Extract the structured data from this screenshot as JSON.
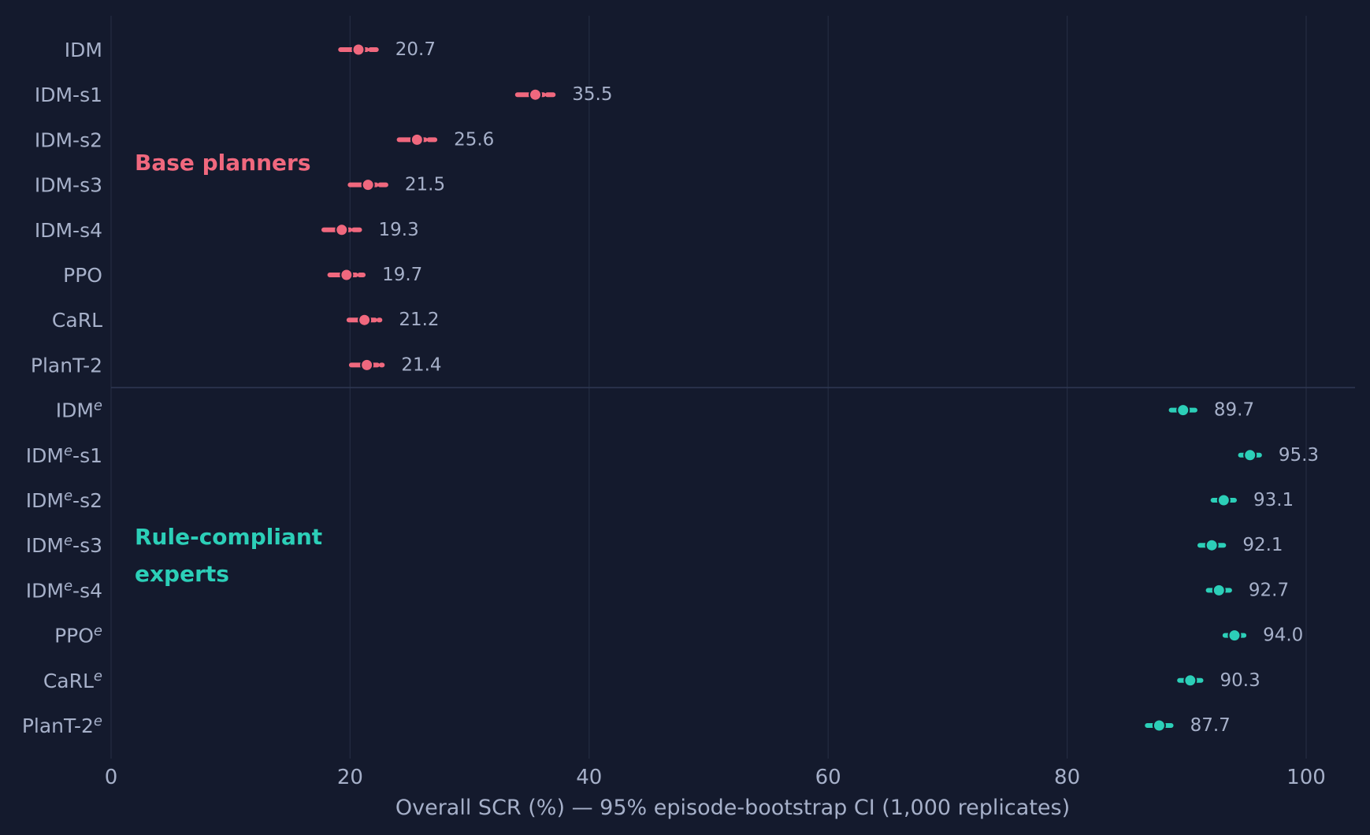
{
  "chart_data": {
    "type": "scatter",
    "xlabel": "Overall SCR (%) — 95% episode-bootstrap CI (1,000 replicates)",
    "xlim": [
      0,
      104
    ],
    "xticks": [
      0,
      20,
      40,
      60,
      80,
      100
    ],
    "grid": "vertical",
    "groups": [
      {
        "label": "Base planners",
        "color": "#f0687e",
        "points": [
          {
            "name": "IDM",
            "sup": "",
            "suffix": "",
            "value": 20.7,
            "ci": [
              19.2,
              22.2
            ],
            "value_label": "20.7"
          },
          {
            "name": "IDM",
            "sup": "",
            "suffix": "-s1",
            "value": 35.5,
            "ci": [
              34.0,
              37.0
            ],
            "value_label": "35.5"
          },
          {
            "name": "IDM",
            "sup": "",
            "suffix": "-s2",
            "value": 25.6,
            "ci": [
              24.1,
              27.1
            ],
            "value_label": "25.6"
          },
          {
            "name": "IDM",
            "sup": "",
            "suffix": "-s3",
            "value": 21.5,
            "ci": [
              20.0,
              23.0
            ],
            "value_label": "21.5"
          },
          {
            "name": "IDM",
            "sup": "",
            "suffix": "-s4",
            "value": 19.3,
            "ci": [
              17.8,
              20.8
            ],
            "value_label": "19.3"
          },
          {
            "name": "PPO",
            "sup": "",
            "suffix": "",
            "value": 19.7,
            "ci": [
              18.3,
              21.1
            ],
            "value_label": "19.7"
          },
          {
            "name": "CaRL",
            "sup": "",
            "suffix": "",
            "value": 21.2,
            "ci": [
              19.9,
              22.5
            ],
            "value_label": "21.2"
          },
          {
            "name": "PlanT-2",
            "sup": "",
            "suffix": "",
            "value": 21.4,
            "ci": [
              20.1,
              22.7
            ],
            "value_label": "21.4"
          }
        ]
      },
      {
        "label": "Rule-compliant experts",
        "color": "#2ccfb8",
        "points": [
          {
            "name": "IDM",
            "sup": "e",
            "suffix": "",
            "value": 89.7,
            "ci": [
              88.7,
              90.7
            ],
            "value_label": "89.7"
          },
          {
            "name": "IDM",
            "sup": "e",
            "suffix": "-s1",
            "value": 95.3,
            "ci": [
              94.5,
              96.1
            ],
            "value_label": "95.3"
          },
          {
            "name": "IDM",
            "sup": "e",
            "suffix": "-s2",
            "value": 93.1,
            "ci": [
              92.2,
              94.0
            ],
            "value_label": "93.1"
          },
          {
            "name": "IDM",
            "sup": "e",
            "suffix": "-s3",
            "value": 92.1,
            "ci": [
              91.1,
              93.1
            ],
            "value_label": "92.1"
          },
          {
            "name": "IDM",
            "sup": "e",
            "suffix": "-s4",
            "value": 92.7,
            "ci": [
              91.8,
              93.6
            ],
            "value_label": "92.7"
          },
          {
            "name": "PPO",
            "sup": "e",
            "suffix": "",
            "value": 94.0,
            "ci": [
              93.2,
              94.8
            ],
            "value_label": "94.0"
          },
          {
            "name": "CaRL",
            "sup": "e",
            "suffix": "",
            "value": 90.3,
            "ci": [
              89.4,
              91.2
            ],
            "value_label": "90.3"
          },
          {
            "name": "PlanT-2",
            "sup": "e",
            "suffix": "",
            "value": 87.7,
            "ci": [
              86.7,
              88.7
            ],
            "value_label": "87.7"
          }
        ]
      }
    ]
  },
  "colors": {
    "background": "#141a2d",
    "grid": "#232b40",
    "divider": "#2e3853",
    "text": "#a6b0c9"
  }
}
